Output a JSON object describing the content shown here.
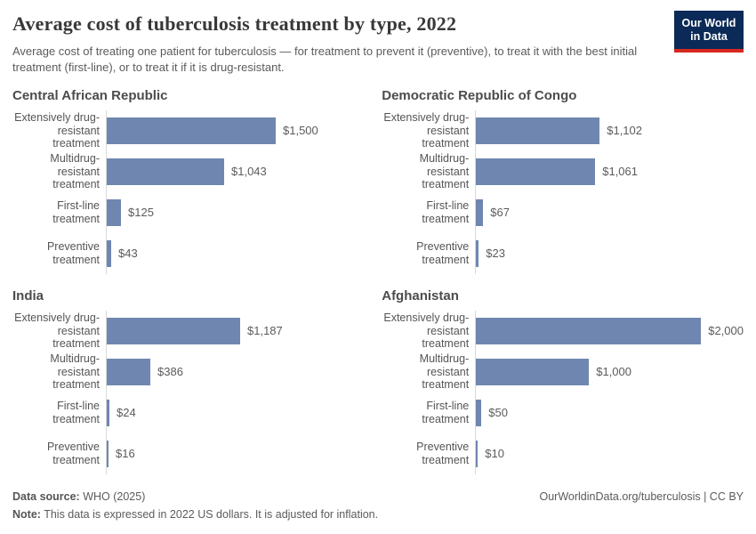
{
  "header": {
    "title": "Average cost of tuberculosis treatment by type, 2022",
    "subtitle": "Average cost of treating one patient for tuberculosis — for treatment to prevent it (preventive), to treat it with the best initial treatment (first-line), or to treat it if it is drug-resistant.",
    "logo": {
      "line1": "Our World",
      "line2": "in Data"
    }
  },
  "chart_data": {
    "type": "bar",
    "orientation": "horizontal",
    "unit": "US$ (2022, inflation-adjusted)",
    "categories": [
      "Extensively drug-resistant treatment",
      "Multidrug-resistant treatment",
      "First-line treatment",
      "Preventive treatment"
    ],
    "xlim": [
      0,
      2000
    ],
    "shared_scale": true,
    "grid": false,
    "legend": "none",
    "bar_color": "#6f87b0",
    "axis_line_color": "#d9d9d9",
    "panels": [
      {
        "title": "Central African Republic",
        "values": [
          1500,
          1043,
          125,
          43
        ],
        "value_labels": [
          "$1,500",
          "$1,043",
          "$125",
          "$43"
        ]
      },
      {
        "title": "Democratic Republic of Congo",
        "values": [
          1102,
          1061,
          67,
          23
        ],
        "value_labels": [
          "$1,102",
          "$1,061",
          "$67",
          "$23"
        ]
      },
      {
        "title": "India",
        "values": [
          1187,
          386,
          24,
          16
        ],
        "value_labels": [
          "$1,187",
          "$386",
          "$24",
          "$16"
        ]
      },
      {
        "title": "Afghanistan",
        "values": [
          2000,
          1000,
          50,
          10
        ],
        "value_labels": [
          "$2,000",
          "$1,000",
          "$50",
          "$10"
        ]
      }
    ]
  },
  "footer": {
    "data_source_label": "Data source:",
    "data_source_value": " WHO (2025)",
    "note_label": "Note:",
    "note_value": " This data is expressed in 2022 US dollars. It is adjusted for inflation.",
    "credit": "OurWorldinData.org/tuberculosis | CC BY"
  }
}
